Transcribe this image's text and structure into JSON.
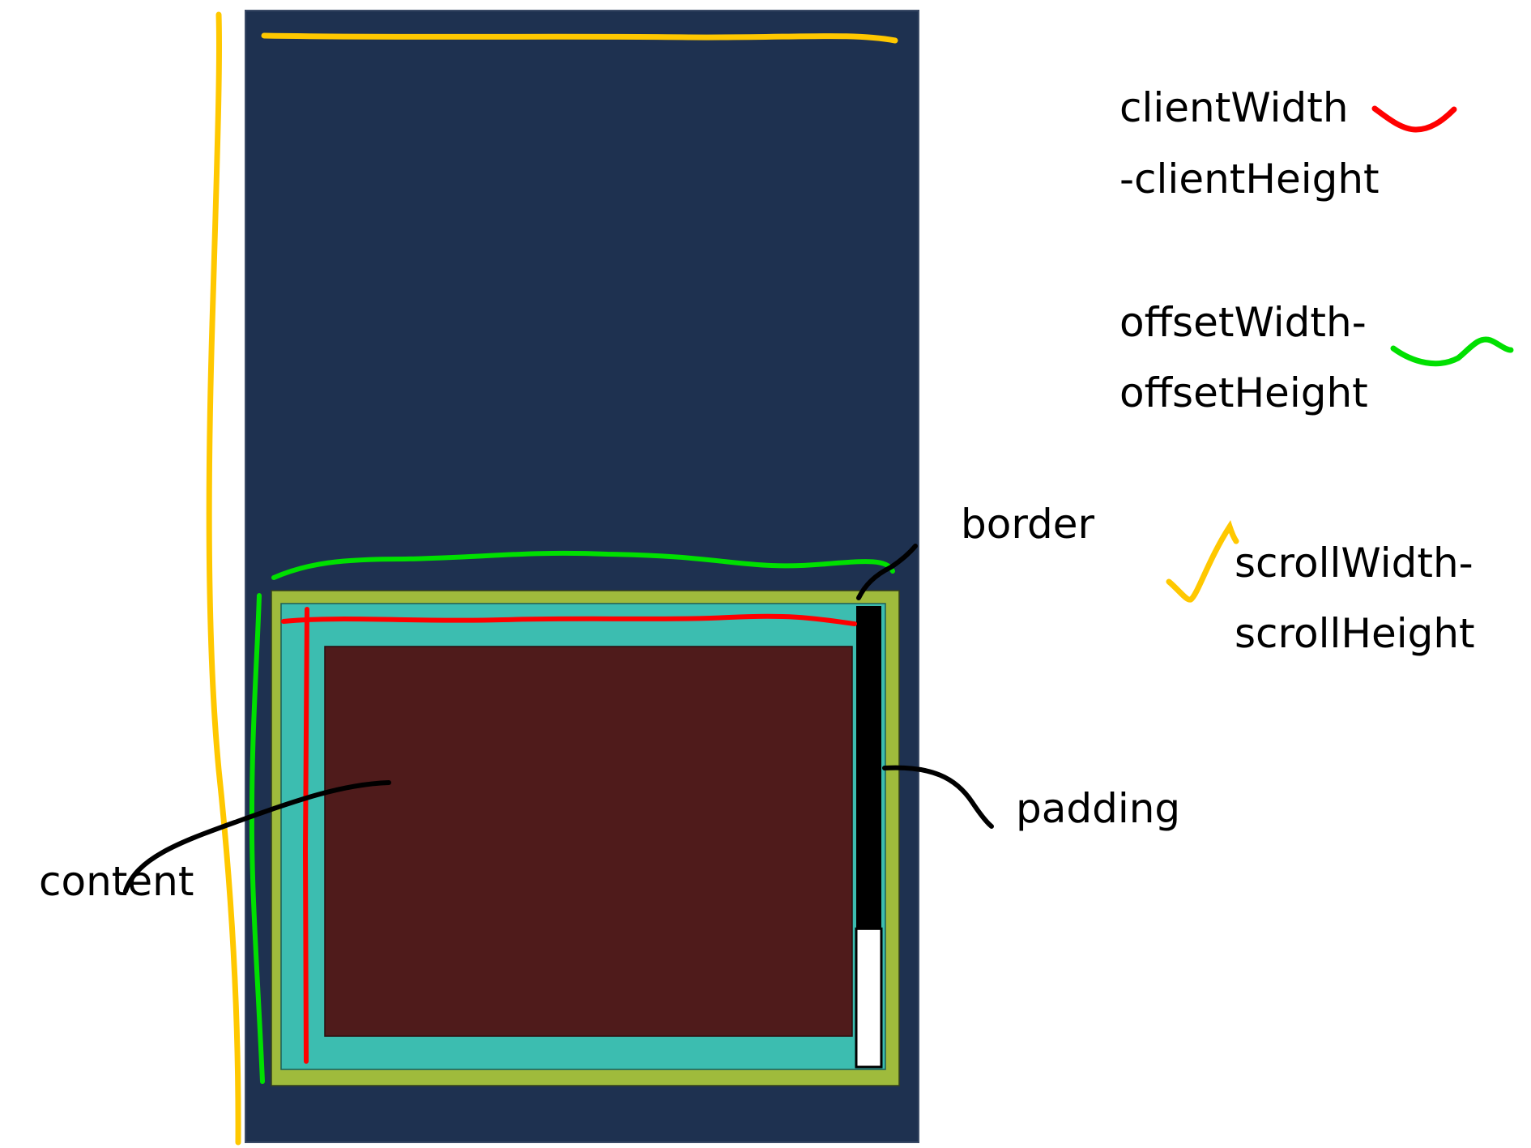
{
  "legend": {
    "client": {
      "line1": "clientWidth",
      "line2": "-clientHeight",
      "color": "#ff0000"
    },
    "offset": {
      "line1": "offsetWidth-",
      "line2": "offsetHeight",
      "color": "#00e000"
    },
    "scroll": {
      "line1": "scrollWidth-",
      "line2": "scrollHeight",
      "color": "#ffc800"
    }
  },
  "labels": {
    "border": "border",
    "padding": "padding",
    "content": "content"
  },
  "colors": {
    "outer_container": "#1e3150",
    "border": "#9fbb3c",
    "padding": "#3cbdb0",
    "content": "#4f1b1b",
    "scrollbar_track": "#000000",
    "scrollbar_thumb": "#ffffff",
    "pointer": "#000000"
  },
  "scrollbar": {
    "thumb_fraction": 0.3
  }
}
